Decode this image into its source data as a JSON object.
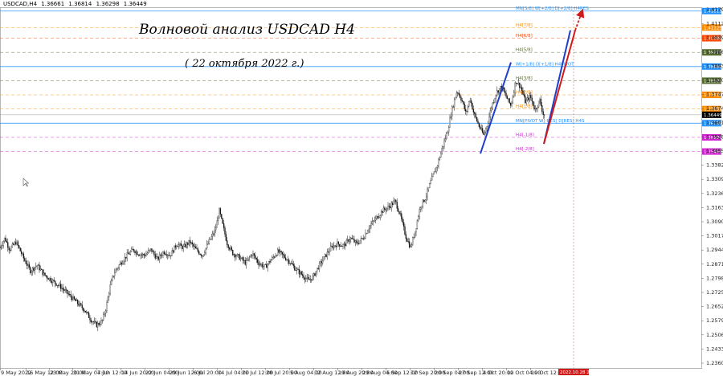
{
  "symbol_header": {
    "symbol": "USDCAD,H4",
    "open": "1.36661",
    "high": "1.36814",
    "low": "1.36298",
    "close": "1.36449"
  },
  "chart_data": {
    "type": "candlestick",
    "title": "Волновой анализ USDCAD H4",
    "subtitle": "( 22 октября 2022 г.)",
    "y_axis_ticks": [
      "1.41795",
      "1.41125",
      "1.40395",
      "1.39665",
      "1.38935",
      "1.38205",
      "1.37475",
      "1.36745",
      "1.36015",
      "1.35285",
      "1.34555",
      "1.33825",
      "1.33095",
      "1.32365",
      "1.31635",
      "1.30905",
      "1.30175",
      "1.29445",
      "1.28715",
      "1.27985",
      "1.27255",
      "1.26525",
      "1.25795",
      "1.25065",
      "1.24335",
      "1.23605"
    ],
    "x_axis_ticks": [
      "9 May 2022",
      "16 May 12:00",
      "23 May 20:00",
      "31 May 04:00",
      "7 Jun 12:00",
      "14 Jun 20:00",
      "22 Jun 04:00",
      "29 Jun 12:00",
      "6 Jul 20:00",
      "14 Jul 04:00",
      "21 Jul 12:00",
      "28 Jul 20:00",
      "5 Aug 04:00",
      "12 Aug 12:00",
      "19 Aug 20:00",
      "29 Aug 04:00",
      "5 Sep 12:00",
      "12 Sep 20:00",
      "20 Sep 04:00",
      "27 Sep 12:00",
      "4 Oct 20:00",
      "12 Oct 04:00",
      "19 Oct 12:00"
    ],
    "current_time_label": "2022.10.28 20:00",
    "price_path": [
      [
        0,
        1.296
      ],
      [
        6,
        1.301
      ],
      [
        12,
        1.295
      ],
      [
        20,
        1.299
      ],
      [
        30,
        1.29
      ],
      [
        38,
        1.284
      ],
      [
        46,
        1.287
      ],
      [
        55,
        1.282
      ],
      [
        65,
        1.279
      ],
      [
        75,
        1.276
      ],
      [
        85,
        1.272
      ],
      [
        95,
        1.268
      ],
      [
        105,
        1.264
      ],
      [
        113,
        1.259
      ],
      [
        120,
        1.256
      ],
      [
        127,
        1.258
      ],
      [
        132,
        1.265
      ],
      [
        137,
        1.276
      ],
      [
        142,
        1.283
      ],
      [
        150,
        1.288
      ],
      [
        158,
        1.292
      ],
      [
        166,
        1.295
      ],
      [
        172,
        1.293
      ],
      [
        180,
        1.292
      ],
      [
        188,
        1.295
      ],
      [
        196,
        1.29
      ],
      [
        204,
        1.294
      ],
      [
        212,
        1.292
      ],
      [
        220,
        1.298
      ],
      [
        228,
        1.296
      ],
      [
        236,
        1.299
      ],
      [
        244,
        1.295
      ],
      [
        252,
        1.292
      ],
      [
        260,
        1.299
      ],
      [
        268,
        1.305
      ],
      [
        273,
        1.315
      ],
      [
        277,
        1.308
      ],
      [
        283,
        1.298
      ],
      [
        290,
        1.293
      ],
      [
        298,
        1.291
      ],
      [
        306,
        1.288
      ],
      [
        314,
        1.293
      ],
      [
        322,
        1.288
      ],
      [
        330,
        1.286
      ],
      [
        338,
        1.29
      ],
      [
        346,
        1.294
      ],
      [
        352,
        1.292
      ],
      [
        360,
        1.289
      ],
      [
        368,
        1.285
      ],
      [
        376,
        1.282
      ],
      [
        384,
        1.279
      ],
      [
        390,
        1.281
      ],
      [
        396,
        1.286
      ],
      [
        404,
        1.291
      ],
      [
        412,
        1.296
      ],
      [
        420,
        1.298
      ],
      [
        428,
        1.297
      ],
      [
        436,
        1.301
      ],
      [
        444,
        1.298
      ],
      [
        452,
        1.301
      ],
      [
        460,
        1.307
      ],
      [
        468,
        1.311
      ],
      [
        476,
        1.315
      ],
      [
        484,
        1.317
      ],
      [
        492,
        1.32
      ],
      [
        498,
        1.313
      ],
      [
        505,
        1.302
      ],
      [
        511,
        1.296
      ],
      [
        517,
        1.305
      ],
      [
        523,
        1.317
      ],
      [
        530,
        1.322
      ],
      [
        537,
        1.331
      ],
      [
        544,
        1.338
      ],
      [
        551,
        1.348
      ],
      [
        557,
        1.356
      ],
      [
        563,
        1.368
      ],
      [
        569,
        1.377
      ],
      [
        575,
        1.372
      ],
      [
        580,
        1.365
      ],
      [
        585,
        1.373
      ],
      [
        590,
        1.365
      ],
      [
        596,
        1.359
      ],
      [
        602,
        1.354
      ],
      [
        607,
        1.36
      ],
      [
        612,
        1.369
      ],
      [
        618,
        1.376
      ],
      [
        624,
        1.379
      ],
      [
        630,
        1.374
      ],
      [
        636,
        1.369
      ],
      [
        642,
        1.382
      ],
      [
        648,
        1.379
      ],
      [
        654,
        1.371
      ],
      [
        660,
        1.374
      ],
      [
        666,
        1.367
      ],
      [
        672,
        1.372
      ],
      [
        676,
        1.365
      ],
      [
        678,
        1.3645
      ]
    ],
    "levels": [
      {
        "label": "MN[S/8] W[+2/8] D[+2/8] H4RES",
        "price": 1.41795,
        "color": "#1e90ff",
        "style": "solid",
        "tag": "1.41815"
      },
      {
        "label": "H4[7/8]",
        "price": 1.40945,
        "color": "#ff8c00",
        "style": "dash",
        "tag": "1.41125"
      },
      {
        "label": "H4[6/8]",
        "price": 1.40395,
        "color": "#ff4500",
        "style": "dash",
        "tag": "1.40380"
      },
      {
        "label": "H4[5/8]",
        "price": 1.39665,
        "color": "#556b2f",
        "style": "dash",
        "tag": "1.39775"
      },
      {
        "label": "W[+1/8] D[+1/8] H4PIVOT",
        "price": 1.38935,
        "color": "#1e90ff",
        "style": "solid",
        "tag": "1.38880"
      },
      {
        "label": "H4[3/8]",
        "price": 1.38205,
        "color": "#556b2f",
        "style": "dash",
        "tag": "1.38500"
      },
      {
        "label": "H4[2/8]",
        "price": 1.37475,
        "color": "#ff8c00",
        "style": "dash",
        "tag": "1.37639"
      },
      {
        "label": "H4[1/8]",
        "price": 1.36745,
        "color": "#ff8c00",
        "style": "dash",
        "tag": "1.37056"
      },
      {
        "label": "MN[PIVOT W[-RES] D[RES] H4S",
        "price": 1.36015,
        "color": "#1e90ff",
        "style": "solid",
        "tag": "1.36735"
      },
      {
        "label": "H4[-1/8]",
        "price": 1.35285,
        "color": "#d020d0",
        "style": "dash",
        "tag": "1.36100"
      },
      {
        "label": "H4[-2/8]",
        "price": 1.34555,
        "color": "#d020d0",
        "style": "dash",
        "tag": "1.35456"
      }
    ],
    "current_price": {
      "tag": "1.36449",
      "price": 1.36449
    },
    "wave_lines": [
      {
        "color": "#1f3fc8",
        "points": [
          [
            598,
            1.3445
          ],
          [
            636,
            1.3915
          ]
        ]
      },
      {
        "color": "#1f3fc8",
        "points": [
          [
            677,
            1.3495
          ],
          [
            710,
            1.408
          ]
        ]
      },
      {
        "color": "#d11a1a",
        "points": [
          [
            677,
            1.3495
          ],
          [
            716,
            1.408
          ]
        ]
      }
    ],
    "ylim": [
      1.234,
      1.4195
    ],
    "grid": false,
    "legend": "none"
  }
}
